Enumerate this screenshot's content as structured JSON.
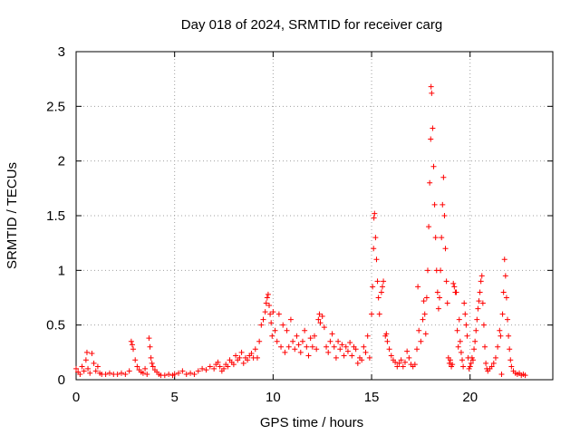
{
  "chart_data": {
    "type": "scatter",
    "title": "Day 018 of 2024, SRMTID for receiver carg",
    "xlabel": "GPS time / hours",
    "ylabel": "SRMTID / TECUs",
    "xlim": [
      0,
      24.2
    ],
    "ylim": [
      0,
      3
    ],
    "xticks": [
      0,
      5,
      10,
      15,
      20
    ],
    "xtick_labels": [
      "0",
      "5",
      "10",
      "15",
      "20"
    ],
    "yticks": [
      0,
      0.5,
      1,
      1.5,
      2,
      2.5,
      3
    ],
    "ytick_labels": [
      "0",
      "0.5",
      "1",
      "1.5",
      "2",
      "2.5",
      "3"
    ],
    "grid": true,
    "marker": "+",
    "series": [
      {
        "name": "SRMTID",
        "color": "#ff0000",
        "points": [
          [
            0.0,
            0.1
          ],
          [
            0.1,
            0.07
          ],
          [
            0.2,
            0.05
          ],
          [
            0.3,
            0.12
          ],
          [
            0.4,
            0.08
          ],
          [
            0.5,
            0.18
          ],
          [
            0.55,
            0.25
          ],
          [
            0.6,
            0.1
          ],
          [
            0.7,
            0.06
          ],
          [
            0.8,
            0.24
          ],
          [
            0.9,
            0.15
          ],
          [
            1.0,
            0.08
          ],
          [
            1.1,
            0.12
          ],
          [
            1.2,
            0.06
          ],
          [
            1.3,
            0.05
          ],
          [
            1.5,
            0.05
          ],
          [
            1.7,
            0.06
          ],
          [
            1.9,
            0.05
          ],
          [
            2.1,
            0.05
          ],
          [
            2.3,
            0.06
          ],
          [
            2.5,
            0.05
          ],
          [
            2.7,
            0.08
          ],
          [
            2.8,
            0.35
          ],
          [
            2.85,
            0.32
          ],
          [
            2.9,
            0.28
          ],
          [
            3.0,
            0.18
          ],
          [
            3.1,
            0.12
          ],
          [
            3.2,
            0.09
          ],
          [
            3.3,
            0.07
          ],
          [
            3.4,
            0.06
          ],
          [
            3.5,
            0.1
          ],
          [
            3.6,
            0.05
          ],
          [
            3.7,
            0.38
          ],
          [
            3.75,
            0.3
          ],
          [
            3.8,
            0.2
          ],
          [
            3.85,
            0.15
          ],
          [
            3.9,
            0.12
          ],
          [
            4.0,
            0.09
          ],
          [
            4.1,
            0.07
          ],
          [
            4.2,
            0.05
          ],
          [
            4.3,
            0.04
          ],
          [
            4.5,
            0.04
          ],
          [
            4.7,
            0.05
          ],
          [
            4.9,
            0.04
          ],
          [
            5.0,
            0.05
          ],
          [
            5.2,
            0.06
          ],
          [
            5.4,
            0.08
          ],
          [
            5.6,
            0.05
          ],
          [
            5.8,
            0.06
          ],
          [
            6.0,
            0.05
          ],
          [
            6.2,
            0.08
          ],
          [
            6.4,
            0.1
          ],
          [
            6.6,
            0.09
          ],
          [
            6.8,
            0.12
          ],
          [
            7.0,
            0.1
          ],
          [
            7.1,
            0.14
          ],
          [
            7.2,
            0.16
          ],
          [
            7.3,
            0.12
          ],
          [
            7.4,
            0.08
          ],
          [
            7.5,
            0.1
          ],
          [
            7.6,
            0.14
          ],
          [
            7.7,
            0.12
          ],
          [
            7.8,
            0.18
          ],
          [
            7.9,
            0.16
          ],
          [
            8.0,
            0.14
          ],
          [
            8.1,
            0.22
          ],
          [
            8.2,
            0.18
          ],
          [
            8.3,
            0.2
          ],
          [
            8.4,
            0.25
          ],
          [
            8.5,
            0.15
          ],
          [
            8.6,
            0.2
          ],
          [
            8.7,
            0.18
          ],
          [
            8.8,
            0.22
          ],
          [
            8.9,
            0.24
          ],
          [
            9.0,
            0.2
          ],
          [
            9.1,
            0.28
          ],
          [
            9.2,
            0.2
          ],
          [
            9.3,
            0.35
          ],
          [
            9.4,
            0.5
          ],
          [
            9.5,
            0.55
          ],
          [
            9.6,
            0.62
          ],
          [
            9.65,
            0.7
          ],
          [
            9.7,
            0.75
          ],
          [
            9.75,
            0.78
          ],
          [
            9.8,
            0.68
          ],
          [
            9.85,
            0.6
          ],
          [
            9.9,
            0.52
          ],
          [
            9.95,
            0.4
          ],
          [
            10.0,
            0.62
          ],
          [
            10.1,
            0.45
          ],
          [
            10.2,
            0.35
          ],
          [
            10.3,
            0.6
          ],
          [
            10.4,
            0.3
          ],
          [
            10.5,
            0.5
          ],
          [
            10.6,
            0.25
          ],
          [
            10.7,
            0.45
          ],
          [
            10.8,
            0.3
          ],
          [
            10.9,
            0.55
          ],
          [
            11.0,
            0.35
          ],
          [
            11.1,
            0.28
          ],
          [
            11.2,
            0.4
          ],
          [
            11.3,
            0.32
          ],
          [
            11.4,
            0.25
          ],
          [
            11.5,
            0.35
          ],
          [
            11.6,
            0.45
          ],
          [
            11.7,
            0.3
          ],
          [
            11.8,
            0.22
          ],
          [
            11.9,
            0.38
          ],
          [
            12.0,
            0.3
          ],
          [
            12.1,
            0.4
          ],
          [
            12.2,
            0.28
          ],
          [
            12.3,
            0.55
          ],
          [
            12.35,
            0.6
          ],
          [
            12.4,
            0.52
          ],
          [
            12.5,
            0.58
          ],
          [
            12.6,
            0.48
          ],
          [
            12.7,
            0.3
          ],
          [
            12.8,
            0.25
          ],
          [
            12.9,
            0.35
          ],
          [
            13.0,
            0.42
          ],
          [
            13.1,
            0.3
          ],
          [
            13.2,
            0.2
          ],
          [
            13.3,
            0.35
          ],
          [
            13.4,
            0.28
          ],
          [
            13.5,
            0.32
          ],
          [
            13.6,
            0.22
          ],
          [
            13.7,
            0.3
          ],
          [
            13.8,
            0.26
          ],
          [
            13.9,
            0.34
          ],
          [
            14.0,
            0.22
          ],
          [
            14.1,
            0.3
          ],
          [
            14.2,
            0.28
          ],
          [
            14.3,
            0.15
          ],
          [
            14.4,
            0.2
          ],
          [
            14.5,
            0.18
          ],
          [
            14.6,
            0.3
          ],
          [
            14.7,
            0.25
          ],
          [
            14.8,
            0.4
          ],
          [
            14.9,
            0.2
          ],
          [
            15.0,
            0.6
          ],
          [
            15.05,
            0.85
          ],
          [
            15.1,
            1.2
          ],
          [
            15.12,
            1.48
          ],
          [
            15.15,
            1.52
          ],
          [
            15.2,
            1.3
          ],
          [
            15.25,
            1.1
          ],
          [
            15.3,
            0.9
          ],
          [
            15.35,
            0.75
          ],
          [
            15.4,
            0.6
          ],
          [
            15.5,
            0.8
          ],
          [
            15.55,
            0.85
          ],
          [
            15.6,
            0.9
          ],
          [
            15.7,
            0.4
          ],
          [
            15.75,
            0.42
          ],
          [
            15.8,
            0.35
          ],
          [
            15.9,
            0.28
          ],
          [
            16.0,
            0.22
          ],
          [
            16.1,
            0.18
          ],
          [
            16.2,
            0.16
          ],
          [
            16.3,
            0.12
          ],
          [
            16.4,
            0.15
          ],
          [
            16.5,
            0.18
          ],
          [
            16.6,
            0.12
          ],
          [
            16.7,
            0.16
          ],
          [
            16.8,
            0.26
          ],
          [
            16.9,
            0.2
          ],
          [
            17.0,
            0.14
          ],
          [
            17.1,
            0.12
          ],
          [
            17.2,
            0.14
          ],
          [
            17.3,
            0.28
          ],
          [
            17.35,
            0.85
          ],
          [
            17.4,
            0.45
          ],
          [
            17.5,
            0.35
          ],
          [
            17.6,
            0.55
          ],
          [
            17.65,
            0.72
          ],
          [
            17.7,
            0.6
          ],
          [
            17.75,
            0.42
          ],
          [
            17.8,
            0.75
          ],
          [
            17.85,
            1.0
          ],
          [
            17.9,
            1.4
          ],
          [
            17.95,
            1.8
          ],
          [
            18.0,
            2.2
          ],
          [
            18.02,
            2.68
          ],
          [
            18.05,
            2.62
          ],
          [
            18.1,
            2.3
          ],
          [
            18.15,
            1.95
          ],
          [
            18.2,
            1.6
          ],
          [
            18.25,
            1.3
          ],
          [
            18.3,
            1.0
          ],
          [
            18.35,
            0.8
          ],
          [
            18.4,
            0.65
          ],
          [
            18.45,
            0.75
          ],
          [
            18.5,
            1.0
          ],
          [
            18.55,
            1.3
          ],
          [
            18.6,
            1.6
          ],
          [
            18.65,
            1.85
          ],
          [
            18.7,
            1.5
          ],
          [
            18.75,
            1.2
          ],
          [
            18.8,
            0.9
          ],
          [
            18.85,
            0.7
          ],
          [
            18.9,
            0.2
          ],
          [
            18.95,
            0.15
          ],
          [
            19.0,
            0.18
          ],
          [
            19.05,
            0.12
          ],
          [
            19.1,
            0.14
          ],
          [
            19.15,
            0.88
          ],
          [
            19.2,
            0.85
          ],
          [
            19.25,
            0.8
          ],
          [
            19.3,
            0.8
          ],
          [
            19.35,
            0.45
          ],
          [
            19.4,
            0.3
          ],
          [
            19.45,
            0.55
          ],
          [
            19.5,
            0.35
          ],
          [
            19.55,
            0.25
          ],
          [
            19.6,
            0.18
          ],
          [
            19.65,
            0.12
          ],
          [
            19.7,
            0.7
          ],
          [
            19.75,
            0.6
          ],
          [
            19.8,
            0.5
          ],
          [
            19.85,
            0.4
          ],
          [
            19.9,
            0.2
          ],
          [
            19.95,
            0.1
          ],
          [
            20.0,
            0.12
          ],
          [
            20.05,
            0.15
          ],
          [
            20.1,
            0.2
          ],
          [
            20.15,
            0.18
          ],
          [
            20.2,
            0.28
          ],
          [
            20.25,
            0.35
          ],
          [
            20.3,
            0.45
          ],
          [
            20.35,
            0.55
          ],
          [
            20.4,
            0.65
          ],
          [
            20.45,
            0.72
          ],
          [
            20.5,
            0.8
          ],
          [
            20.55,
            0.9
          ],
          [
            20.6,
            0.95
          ],
          [
            20.65,
            0.7
          ],
          [
            20.7,
            0.5
          ],
          [
            20.75,
            0.3
          ],
          [
            20.8,
            0.15
          ],
          [
            20.85,
            0.1
          ],
          [
            20.9,
            0.08
          ],
          [
            21.0,
            0.1
          ],
          [
            21.1,
            0.12
          ],
          [
            21.2,
            0.15
          ],
          [
            21.3,
            0.2
          ],
          [
            21.4,
            0.3
          ],
          [
            21.5,
            0.45
          ],
          [
            21.55,
            0.4
          ],
          [
            21.6,
            0.05
          ],
          [
            21.65,
            0.6
          ],
          [
            21.7,
            0.8
          ],
          [
            21.75,
            1.1
          ],
          [
            21.8,
            0.95
          ],
          [
            21.85,
            0.75
          ],
          [
            21.9,
            0.55
          ],
          [
            21.95,
            0.4
          ],
          [
            22.0,
            0.28
          ],
          [
            22.05,
            0.18
          ],
          [
            22.1,
            0.12
          ],
          [
            22.2,
            0.08
          ],
          [
            22.3,
            0.06
          ],
          [
            22.4,
            0.05
          ],
          [
            22.5,
            0.06
          ],
          [
            22.6,
            0.04
          ],
          [
            22.7,
            0.05
          ],
          [
            22.8,
            0.04
          ]
        ]
      }
    ]
  }
}
